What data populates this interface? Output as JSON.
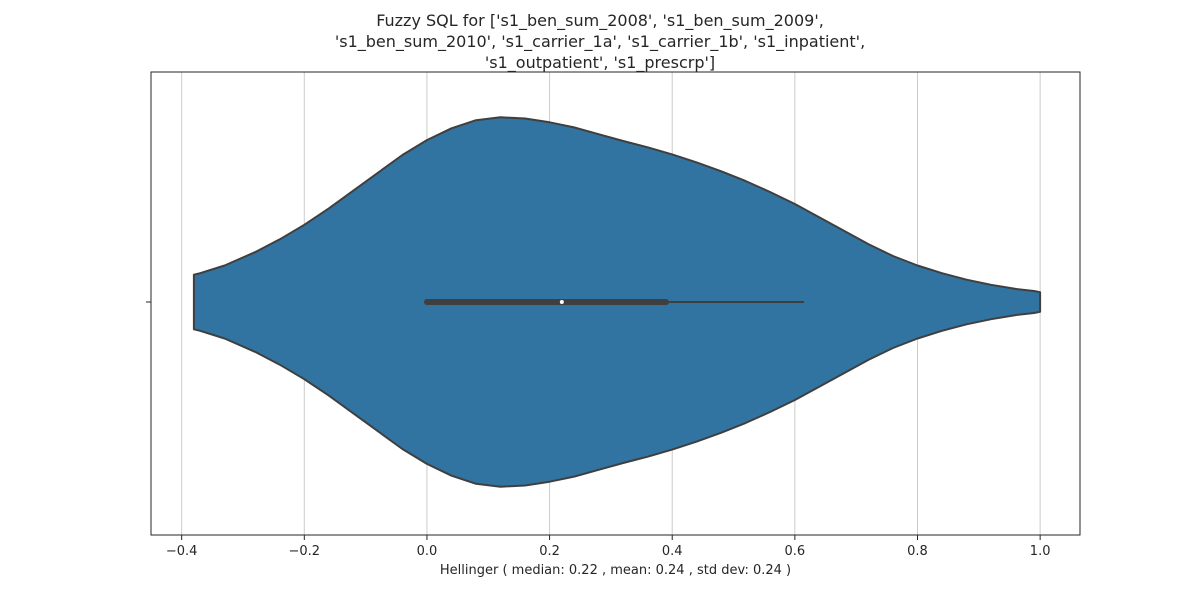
{
  "chart_data": {
    "type": "violin",
    "title_lines": [
      "Fuzzy SQL for ['s1_ben_sum_2008', 's1_ben_sum_2009',",
      "'s1_ben_sum_2010', 's1_carrier_1a', 's1_carrier_1b', 's1_inpatient',",
      "'s1_outpatient', 's1_prescrp']"
    ],
    "xlabel": "Hellinger ( median: 0.22 , mean: 0.24 , std dev: 0.24 )",
    "xlim": [
      -0.45,
      1.065
    ],
    "xticks": [
      -0.4,
      -0.2,
      0.0,
      0.2,
      0.4,
      0.6,
      0.8,
      1.0
    ],
    "xtick_labels": [
      "−0.4",
      "−0.2",
      "0.0",
      "0.2",
      "0.4",
      "0.6",
      "0.8",
      "1.0"
    ],
    "grid": "x-major",
    "color": "#3274a1",
    "edge_color": "#3f3f3f",
    "stats": {
      "median": 0.22,
      "q1": 0.0,
      "q3": 0.39,
      "whisker_low": 0.0,
      "whisker_high": 0.615,
      "min": -0.38,
      "max": 1.0
    },
    "density_profile": [
      [
        -0.38,
        0.092
      ],
      [
        -0.37,
        0.097
      ],
      [
        -0.33,
        0.123
      ],
      [
        -0.28,
        0.168
      ],
      [
        -0.24,
        0.211
      ],
      [
        -0.2,
        0.26
      ],
      [
        -0.16,
        0.315
      ],
      [
        -0.12,
        0.375
      ],
      [
        -0.08,
        0.435
      ],
      [
        -0.04,
        0.495
      ],
      [
        0.0,
        0.545
      ],
      [
        0.04,
        0.585
      ],
      [
        0.08,
        0.612
      ],
      [
        0.12,
        0.622
      ],
      [
        0.16,
        0.618
      ],
      [
        0.2,
        0.605
      ],
      [
        0.24,
        0.588
      ],
      [
        0.28,
        0.565
      ],
      [
        0.32,
        0.542
      ],
      [
        0.36,
        0.521
      ],
      [
        0.4,
        0.497
      ],
      [
        0.44,
        0.47
      ],
      [
        0.48,
        0.44
      ],
      [
        0.52,
        0.407
      ],
      [
        0.56,
        0.37
      ],
      [
        0.6,
        0.33
      ],
      [
        0.64,
        0.285
      ],
      [
        0.68,
        0.24
      ],
      [
        0.72,
        0.195
      ],
      [
        0.76,
        0.155
      ],
      [
        0.8,
        0.123
      ],
      [
        0.84,
        0.097
      ],
      [
        0.88,
        0.075
      ],
      [
        0.92,
        0.058
      ],
      [
        0.96,
        0.044
      ],
      [
        0.99,
        0.037
      ],
      [
        1.0,
        0.033
      ]
    ]
  }
}
